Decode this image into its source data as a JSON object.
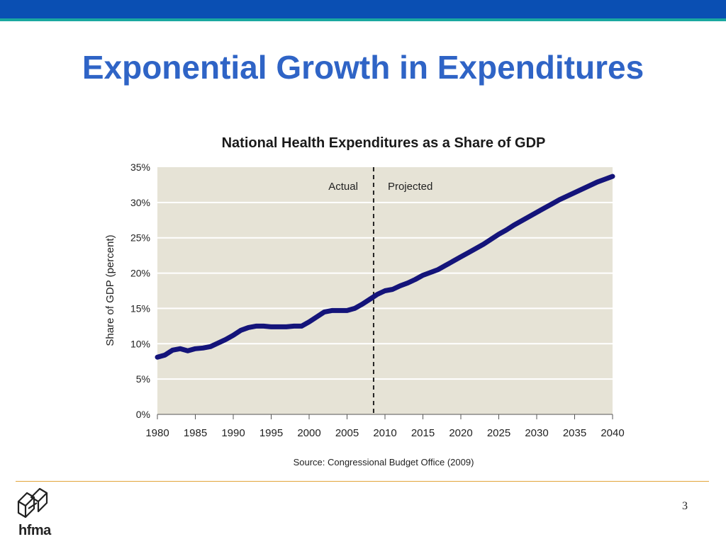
{
  "slide": {
    "title": "Exponential Growth in Expenditures",
    "page_number": "3",
    "logo_text": "hfma"
  },
  "colors": {
    "top_bar": "#0a4fb3",
    "top_accent": "#1aa8a0",
    "title": "#2f64c6",
    "plot_background": "#e6e3d6",
    "series_line": "#14147a",
    "footer_line": "#e2a43a"
  },
  "chart_data": {
    "type": "line",
    "title": "National Health Expenditures as a Share of GDP",
    "ylabel": "Share of GDP (percent)",
    "xlabel": "",
    "source": "Source: Congressional Budget Office (2009)",
    "xlim": [
      1980,
      2040
    ],
    "ylim": [
      0,
      35
    ],
    "xticks": [
      "1980",
      "1985",
      "1990",
      "1995",
      "2000",
      "2005",
      "2010",
      "2015",
      "2020",
      "2025",
      "2030",
      "2035",
      "2040"
    ],
    "yticks": [
      "0%",
      "5%",
      "10%",
      "15%",
      "20%",
      "25%",
      "30%",
      "35%"
    ],
    "grid": true,
    "divider": {
      "x": 2008.5,
      "left_label": "Actual",
      "right_label": "Projected"
    },
    "series": [
      {
        "x": [
          1980,
          1981,
          1982,
          1983,
          1984,
          1985,
          1986,
          1987,
          1988,
          1989,
          1990,
          1991,
          1992,
          1993,
          1994,
          1995,
          1996,
          1997,
          1998,
          1999,
          2000,
          2001,
          2002,
          2003,
          2004,
          2005,
          2006,
          2007,
          2008,
          2009,
          2010,
          2011,
          2012,
          2013,
          2014,
          2015,
          2016,
          2017,
          2018,
          2019,
          2020,
          2021,
          2022,
          2023,
          2024,
          2025,
          2026,
          2027,
          2028,
          2029,
          2030,
          2031,
          2032,
          2033,
          2034,
          2035,
          2036,
          2037,
          2038,
          2039,
          2040
        ],
        "y": [
          8.1,
          8.4,
          9.1,
          9.3,
          9.0,
          9.3,
          9.4,
          9.6,
          10.1,
          10.6,
          11.2,
          11.9,
          12.3,
          12.5,
          12.5,
          12.4,
          12.4,
          12.4,
          12.5,
          12.5,
          13.1,
          13.8,
          14.5,
          14.7,
          14.7,
          14.7,
          15.0,
          15.6,
          16.3,
          17.0,
          17.5,
          17.7,
          18.2,
          18.6,
          19.1,
          19.7,
          20.1,
          20.5,
          21.1,
          21.7,
          22.3,
          22.9,
          23.5,
          24.1,
          24.8,
          25.5,
          26.1,
          26.8,
          27.4,
          28.0,
          28.6,
          29.2,
          29.8,
          30.4,
          30.9,
          31.4,
          31.9,
          32.4,
          32.9,
          33.3,
          33.7
        ]
      }
    ]
  }
}
